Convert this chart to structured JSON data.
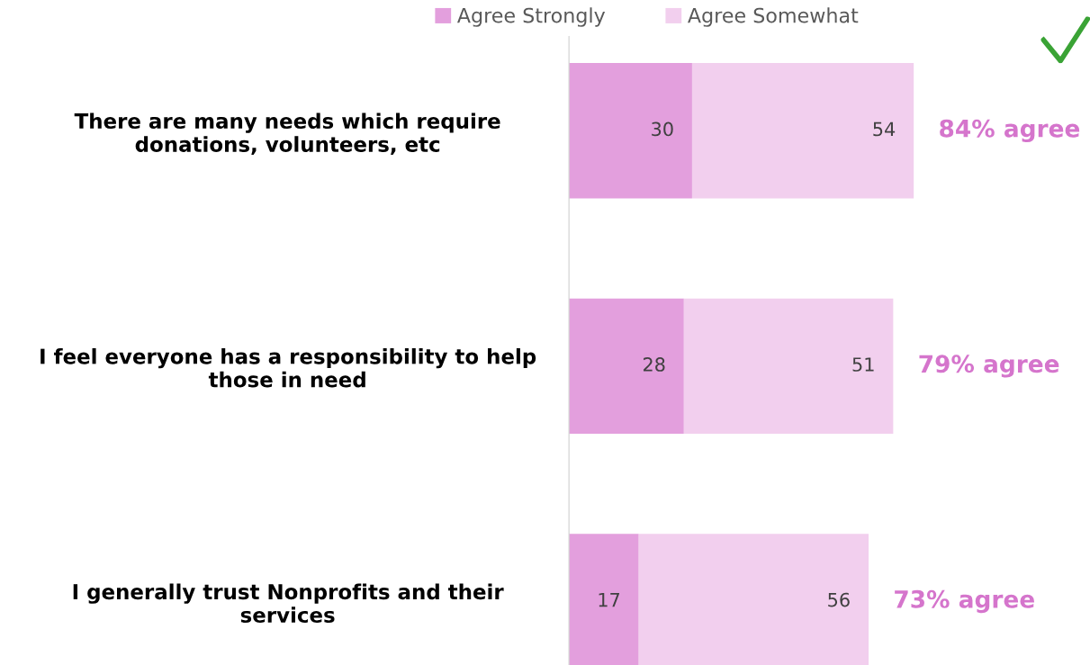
{
  "chart_data": {
    "type": "bar",
    "orientation": "horizontal",
    "stacked": true,
    "categories": [
      "There are many needs which require\ndonations, volunteers, etc",
      "I feel everyone has a responsibility to help\nthose in need",
      "I generally trust Nonprofits and their\nservices"
    ],
    "series": [
      {
        "name": "Agree Strongly",
        "color": "#e39fdd",
        "values": [
          30,
          28,
          17
        ]
      },
      {
        "name": "Agree Somewhat",
        "color": "#f2cfee",
        "values": [
          54,
          51,
          56
        ]
      }
    ],
    "data_labels": true,
    "totals": [
      "84% agree",
      "79% agree",
      "73% agree"
    ],
    "legend": "top",
    "grid": false
  }
}
